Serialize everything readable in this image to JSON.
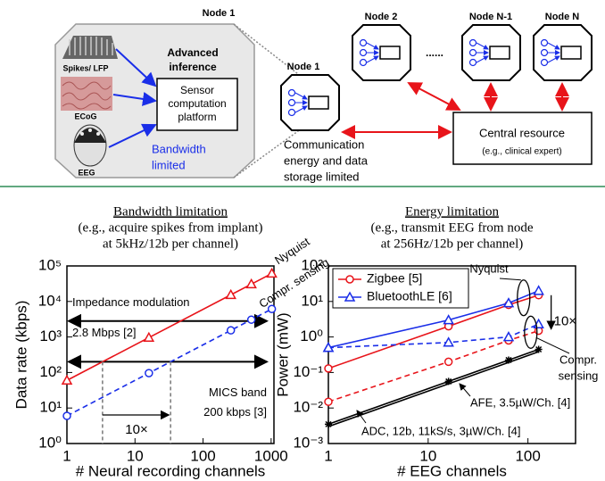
{
  "diagram": {
    "panel_title": "Node 1",
    "sources": [
      "Spikes/ LFP",
      "ECoG",
      "EEG"
    ],
    "inference": [
      "Advanced",
      "inference"
    ],
    "platform": [
      "Sensor",
      "computation",
      "platform"
    ],
    "bandwidth": [
      "Bandwidth",
      "limited"
    ],
    "nodes": [
      "Node 1",
      "Node 2",
      "Node N-1",
      "Node N"
    ],
    "ellipsis": "......",
    "communication": [
      "Communication",
      "energy and data",
      "storage limited"
    ],
    "central": "Central resource",
    "central_note": "(e.g., clinical expert)"
  },
  "chart_data": [
    {
      "type": "line",
      "title": [
        "Bandwidth limitation",
        "(e.g., acquire spikes from implant)",
        "at 5kHz/12b per channel)"
      ],
      "xlabel": "# Neural recording channels",
      "ylabel": "Data rate (kbps)",
      "xscale": "log",
      "yscale": "log",
      "xlim": [
        1,
        1100
      ],
      "ylim": [
        1,
        100000
      ],
      "xticks": [
        1,
        10,
        100,
        1000
      ],
      "yticks": [
        {
          "value": 1,
          "label": "10⁰"
        },
        {
          "value": 10,
          "label": "10¹"
        },
        {
          "value": 100,
          "label": "10²"
        },
        {
          "value": 1000,
          "label": "10³"
        },
        {
          "value": 10000,
          "label": "10⁴"
        },
        {
          "value": 100000,
          "label": "10⁵"
        }
      ],
      "series": [
        {
          "name": "Nyquist",
          "color": "#e8141a",
          "style": "solid",
          "marker": "triangle",
          "x": [
            1,
            16,
            256,
            512,
            1024
          ],
          "values": [
            60,
            960,
            15360,
            30720,
            61440
          ]
        },
        {
          "name": "Compr. sensing",
          "color": "#1a2ee8",
          "style": "dashed",
          "marker": "circle",
          "x": [
            1,
            16,
            256,
            512,
            1024
          ],
          "values": [
            6,
            96,
            1536,
            3072,
            6144
          ]
        }
      ],
      "hlines": [
        {
          "value": 2800,
          "label": [
            "Impedance modulation",
            "2.8 Mbps [2]"
          ]
        },
        {
          "value": 200,
          "label": [
            "MICS band",
            "200 kbps [3]"
          ]
        }
      ],
      "annotations": {
        "ratio": "10×"
      }
    },
    {
      "type": "line",
      "title": [
        "Energy limitation",
        "(e.g., transmit EEG from node",
        "at 256Hz/12b per channel)"
      ],
      "xlabel": "# EEG channels",
      "ylabel": "Power (mW)",
      "xscale": "log",
      "yscale": "log",
      "xlim": [
        1,
        300
      ],
      "ylim": [
        0.001,
        100
      ],
      "xticks": [
        1,
        10,
        100
      ],
      "yticks": [
        {
          "value": 0.001,
          "label": "10⁻³"
        },
        {
          "value": 0.01,
          "label": "10⁻²"
        },
        {
          "value": 0.1,
          "label": "10⁻¹"
        },
        {
          "value": 1,
          "label": "10⁰"
        },
        {
          "value": 10,
          "label": "10¹"
        },
        {
          "value": 100,
          "label": "10²"
        }
      ],
      "legend": "upper left",
      "series": [
        {
          "name": "Zigbee [5]",
          "in_legend": true,
          "color": "#e8141a",
          "style": "solid",
          "marker": "circle",
          "x": [
            1,
            16,
            64,
            128
          ],
          "values": [
            0.13,
            2,
            8,
            15
          ]
        },
        {
          "name": "BluetoothLE [6]",
          "in_legend": true,
          "color": "#1a2ee8",
          "style": "solid",
          "marker": "triangle",
          "x": [
            1,
            16,
            64,
            128
          ],
          "values": [
            0.5,
            3,
            9,
            20
          ]
        },
        {
          "color": "#e8141a",
          "style": "dashed",
          "marker": "circle",
          "x": [
            1,
            16,
            64,
            128
          ],
          "values": [
            0.015,
            0.2,
            0.8,
            1.5
          ]
        },
        {
          "color": "#1a2ee8",
          "style": "dashed",
          "marker": "triangle",
          "x": [
            1,
            16,
            64,
            128
          ],
          "values": [
            0.5,
            0.7,
            1,
            2.3
          ]
        },
        {
          "name": "AFE, 3.5µW/Ch. [4]",
          "in_legend": false,
          "color": "#000000",
          "style": "solid",
          "marker": "star",
          "x": [
            1,
            16,
            64,
            128
          ],
          "values": [
            0.0035,
            0.056,
            0.224,
            0.448
          ]
        },
        {
          "name": "ADC, 12b, 11kS/s, 3µW/Ch. [4]",
          "in_legend": false,
          "color": "#000000",
          "style": "solid",
          "marker": "none",
          "x": [
            1,
            16,
            64,
            128
          ],
          "values": [
            0.003,
            0.048,
            0.192,
            0.384
          ]
        }
      ],
      "annotations": {
        "nyquist": "Nyquist",
        "compressed": [
          "Compr.",
          "sensing"
        ],
        "ratio": "10×"
      }
    }
  ]
}
